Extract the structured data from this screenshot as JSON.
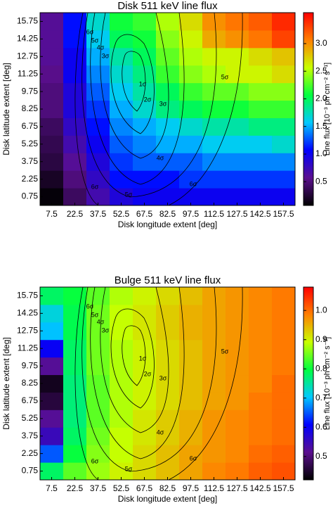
{
  "chart_data": [
    {
      "type": "heatmap",
      "title": "Disk 511 keV line flux",
      "x_label": "Disk longitude extent [deg]",
      "y_label": "Disk latitude extent [deg]",
      "x": [
        7.5,
        22.5,
        37.5,
        52.5,
        67.5,
        82.5,
        97.5,
        112.5,
        127.5,
        142.5,
        157.5
      ],
      "y": [
        0.75,
        2.25,
        3.75,
        5.25,
        6.75,
        8.25,
        9.75,
        11.25,
        12.75,
        14.25,
        15.75
      ],
      "values": [
        [
          0.1,
          0.4,
          0.7,
          0.9,
          1.0,
          1.0,
          1.0,
          1.0,
          1.0,
          1.0,
          1.0
        ],
        [
          0.2,
          0.5,
          0.8,
          1.1,
          1.1,
          1.1,
          1.2,
          1.2,
          1.2,
          1.2,
          1.2
        ],
        [
          0.3,
          0.6,
          0.9,
          1.2,
          1.3,
          1.3,
          1.3,
          1.4,
          1.4,
          1.4,
          1.4
        ],
        [
          0.35,
          0.7,
          1.0,
          1.3,
          1.4,
          1.5,
          1.5,
          1.6,
          1.6,
          1.6,
          1.7
        ],
        [
          0.4,
          0.8,
          1.1,
          1.4,
          1.5,
          1.6,
          1.7,
          1.8,
          1.8,
          1.9,
          1.9
        ],
        [
          0.5,
          0.9,
          1.2,
          1.5,
          1.7,
          1.9,
          2.0,
          2.1,
          2.1,
          2.2,
          2.2
        ],
        [
          0.5,
          0.9,
          1.3,
          1.6,
          1.8,
          2.0,
          2.2,
          2.3,
          2.3,
          2.4,
          2.4
        ],
        [
          0.55,
          1.0,
          1.4,
          1.7,
          1.9,
          2.2,
          2.4,
          2.5,
          2.6,
          2.6,
          2.7
        ],
        [
          0.6,
          1.0,
          1.5,
          1.8,
          2.0,
          2.3,
          2.5,
          2.6,
          2.6,
          2.7,
          2.8
        ],
        [
          0.6,
          1.1,
          1.6,
          2.0,
          2.1,
          2.4,
          2.6,
          2.9,
          3.0,
          3.1,
          3.3
        ],
        [
          0.6,
          1.1,
          1.7,
          2.1,
          2.2,
          2.5,
          2.7,
          3.0,
          3.1,
          3.2,
          3.4
        ]
      ],
      "zlim": [
        0.07,
        3.56
      ],
      "zticks": [
        0.5,
        {
          "value": 1,
          "label": "1.0"
        },
        1.5,
        {
          "value": 2,
          "label": "2.0"
        },
        2.5,
        {
          "value": 3,
          "label": "3.0"
        }
      ],
      "colorbar_label": "Line flux [10⁻³ ph cm⁻² s⁻¹]",
      "colors": [
        "#000000",
        "#5b0f8f",
        "#0000ff",
        "#00c8ff",
        "#00ff40",
        "#c8ff00",
        "#ff8000",
        "#ff0000"
      ],
      "contour_labels": [
        "1σ",
        "2σ",
        "3σ",
        "4σ",
        "5σ",
        "6σ",
        "5σ",
        "6σ",
        "6σ",
        "5σ",
        "4σ",
        "3σ"
      ]
    },
    {
      "type": "heatmap",
      "title": "Bulge 511 keV line flux",
      "x_label": "Disk longitude extent [deg]",
      "y_label": "Disk latitude extent [deg]",
      "x": [
        7.5,
        22.5,
        37.5,
        52.5,
        67.5,
        82.5,
        97.5,
        112.5,
        127.5,
        142.5,
        157.5
      ],
      "y": [
        0.75,
        2.25,
        3.75,
        5.25,
        6.75,
        8.25,
        9.75,
        11.25,
        12.75,
        14.25,
        15.75
      ],
      "values": [
        [
          0.78,
          0.84,
          0.87,
          0.9,
          0.92,
          0.94,
          0.96,
          0.98,
          0.99,
          1.01,
          1.02
        ],
        [
          0.65,
          0.8,
          0.86,
          0.89,
          0.92,
          0.94,
          0.96,
          0.97,
          0.98,
          1.0,
          1.01
        ],
        [
          0.55,
          0.78,
          0.85,
          0.89,
          0.91,
          0.93,
          0.95,
          0.97,
          0.98,
          0.99,
          1.0
        ],
        [
          0.52,
          0.77,
          0.84,
          0.88,
          0.91,
          0.93,
          0.95,
          0.97,
          0.98,
          0.99,
          1.0
        ],
        [
          0.46,
          0.77,
          0.84,
          0.88,
          0.9,
          0.92,
          0.94,
          0.96,
          0.97,
          0.99,
          1.0
        ],
        [
          0.44,
          0.77,
          0.84,
          0.88,
          0.9,
          0.92,
          0.94,
          0.96,
          0.97,
          0.98,
          1.0
        ],
        [
          0.52,
          0.78,
          0.85,
          0.88,
          0.9,
          0.92,
          0.94,
          0.96,
          0.97,
          0.98,
          0.99
        ],
        [
          0.6,
          0.78,
          0.85,
          0.88,
          0.9,
          0.92,
          0.94,
          0.96,
          0.97,
          0.98,
          0.99
        ],
        [
          0.7,
          0.79,
          0.85,
          0.89,
          0.91,
          0.93,
          0.95,
          0.96,
          0.97,
          0.98,
          0.99
        ],
        [
          0.72,
          0.79,
          0.85,
          0.89,
          0.91,
          0.93,
          0.95,
          0.96,
          0.97,
          0.98,
          0.99
        ],
        [
          0.78,
          0.8,
          0.84,
          0.88,
          0.9,
          0.92,
          0.94,
          0.96,
          0.97,
          0.98,
          0.99
        ]
      ],
      "zlim": [
        0.42,
        1.08
      ],
      "zticks": [
        0.5,
        0.6,
        0.7,
        0.8,
        0.9,
        {
          "value": 1,
          "label": "1.0"
        }
      ],
      "colorbar_label": "Line flux [10⁻³ ph cm⁻² s⁻¹]",
      "colors": [
        "#000000",
        "#5b0f8f",
        "#0000ff",
        "#00c8ff",
        "#00ff40",
        "#c8ff00",
        "#ff8000",
        "#ff0000"
      ],
      "contour_labels": [
        "1σ",
        "2σ",
        "3σ",
        "4σ",
        "5σ",
        "6σ",
        "5σ",
        "6σ",
        "6σ",
        "5σ",
        "4σ",
        "3σ"
      ]
    }
  ]
}
